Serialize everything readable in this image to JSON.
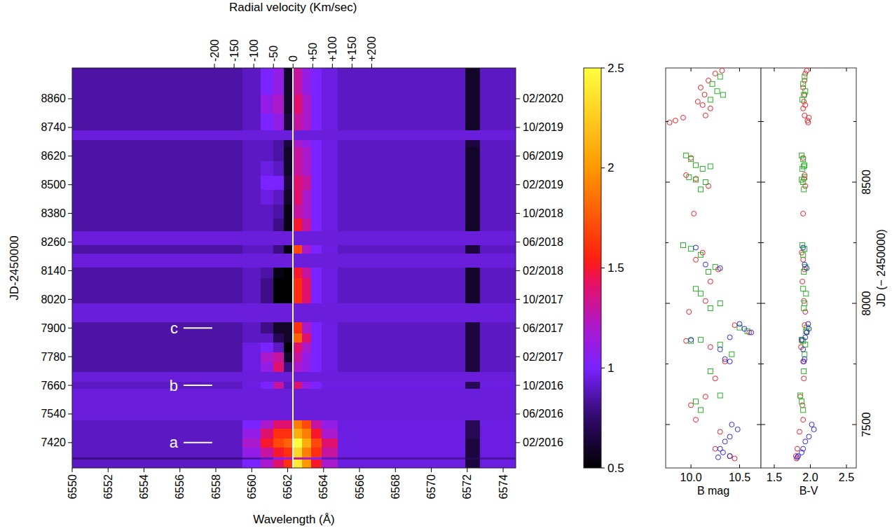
{
  "chart_data": [
    {
      "type": "heatmap",
      "xlabel": "Wavelength (Å)",
      "ylabel": "JD-2450000",
      "x2label": "Radial velocity (Km/sec)",
      "xlim": [
        6550,
        6574.7
      ],
      "xticks": [
        6550,
        6552,
        6554,
        6556,
        6558,
        6560,
        6562,
        6564,
        6566,
        6568,
        6570,
        6572,
        6574
      ],
      "x2lim": [
        -562,
        566.5
      ],
      "x2ticks": [
        -200,
        -150,
        -100,
        -50,
        0,
        {
          "value": 50,
          "label": "+50"
        },
        {
          "value": 100,
          "label": "+100"
        },
        {
          "value": 150,
          "label": "+150"
        },
        {
          "value": 200,
          "label": "+200"
        }
      ],
      "ylim": [
        7314,
        8989
      ],
      "yticks": [
        7420,
        7540,
        7660,
        7780,
        7900,
        8020,
        8140,
        8260,
        8380,
        8500,
        8620,
        8740,
        8860
      ],
      "y2lim": [
        7314,
        8989
      ],
      "y2ticks": [
        {
          "value": 7420,
          "label": "02/2016"
        },
        {
          "value": 7540,
          "label": "06/2016"
        },
        {
          "value": 7660,
          "label": "10/2016"
        },
        {
          "value": 7780,
          "label": "02/2017"
        },
        {
          "value": 7900,
          "label": "06/2017"
        },
        {
          "value": 8020,
          "label": "10/2017"
        },
        {
          "value": 8140,
          "label": "02/2018"
        },
        {
          "value": 8260,
          "label": "06/2018"
        },
        {
          "value": 8380,
          "label": "10/2018"
        },
        {
          "value": 8500,
          "label": "02/2019"
        },
        {
          "value": 8620,
          "label": "06/2019"
        },
        {
          "value": 8740,
          "label": "10/2019"
        },
        {
          "value": 8860,
          "label": "02/2020"
        }
      ],
      "x_edges": [
        6550,
        6559.5,
        6560.5,
        6561.2,
        6561.8,
        6562.3,
        6562.8,
        6563.3,
        6563.9,
        6564.8,
        6571.9,
        6572.7,
        6574.7
      ],
      "y_edges": [
        7314,
        7350,
        7361,
        7400,
        7440,
        7480,
        7514,
        7646,
        7675,
        7719,
        7760,
        7800,
        7840,
        7880,
        7924,
        8006,
        8060,
        8110,
        8153,
        8212,
        8247,
        8306,
        8360,
        8420,
        8480,
        8540,
        8600,
        8660,
        8687,
        8731,
        8800,
        8880,
        8989
      ],
      "cells": [
        [
          0.9,
          1.0,
          1.2,
          1.4,
          1.6,
          2.4,
          2.0,
          1.5,
          1.2,
          0.95,
          0.65,
          0.95
        ],
        [
          0.8,
          0.85,
          0.9,
          1.0,
          1.1,
          1.3,
          1.2,
          1.0,
          0.9,
          0.85,
          0.7,
          0.85
        ],
        [
          0.9,
          1.1,
          1.3,
          1.5,
          1.6,
          2.3,
          1.9,
          1.6,
          1.3,
          0.95,
          0.65,
          0.95
        ],
        [
          0.9,
          1.2,
          1.5,
          1.7,
          1.8,
          2.5,
          2.1,
          1.7,
          1.4,
          0.95,
          0.65,
          0.95
        ],
        [
          0.9,
          1.1,
          1.4,
          1.6,
          1.6,
          2.1,
          1.9,
          1.5,
          1.2,
          0.95,
          0.7,
          0.95
        ],
        [
          0.9,
          1.0,
          1.2,
          1.4,
          1.4,
          1.9,
          1.7,
          1.3,
          1.1,
          0.95,
          0.7,
          0.95
        ],
        null,
        [
          0.9,
          0.95,
          1.0,
          1.3,
          0.9,
          1.4,
          1.1,
          1.0,
          0.95,
          0.95,
          0.7,
          0.95
        ],
        null,
        [
          0.85,
          0.95,
          1.1,
          1.4,
          0.8,
          1.2,
          1.1,
          1.0,
          0.95,
          0.9,
          0.65,
          0.9
        ],
        [
          0.85,
          0.95,
          1.2,
          1.3,
          0.6,
          1.3,
          1.1,
          1.0,
          0.95,
          0.9,
          0.65,
          0.9
        ],
        [
          0.85,
          0.95,
          1.0,
          0.9,
          0.5,
          1.4,
          1.2,
          1.0,
          0.95,
          0.9,
          0.65,
          0.9
        ],
        [
          0.85,
          0.9,
          0.9,
          0.7,
          0.6,
          1.8,
          1.4,
          1.0,
          0.95,
          0.9,
          0.65,
          0.9
        ],
        [
          0.85,
          0.9,
          0.8,
          0.6,
          0.6,
          1.6,
          1.2,
          1.0,
          0.95,
          0.9,
          0.65,
          0.9
        ],
        null,
        [
          0.85,
          0.9,
          0.8,
          0.5,
          0.5,
          1.6,
          1.4,
          1.0,
          0.95,
          0.9,
          0.6,
          0.9
        ],
        [
          0.85,
          0.9,
          0.8,
          0.5,
          0.5,
          1.6,
          1.4,
          1.0,
          0.95,
          0.9,
          0.6,
          0.9
        ],
        [
          0.85,
          0.9,
          0.85,
          0.55,
          0.5,
          1.5,
          1.3,
          1.0,
          0.95,
          0.9,
          0.6,
          0.9
        ],
        null,
        [
          0.85,
          0.9,
          0.9,
          0.8,
          0.55,
          1.7,
          1.2,
          1.0,
          0.95,
          0.9,
          0.65,
          0.9
        ],
        null,
        [
          0.85,
          0.9,
          0.9,
          0.8,
          0.55,
          1.5,
          1.3,
          1.0,
          0.95,
          0.9,
          0.6,
          0.9
        ],
        [
          0.85,
          0.9,
          0.9,
          0.85,
          0.55,
          1.3,
          1.2,
          1.0,
          0.95,
          0.9,
          0.6,
          0.9
        ],
        [
          0.85,
          0.9,
          0.95,
          0.9,
          0.6,
          1.4,
          1.2,
          1.0,
          0.95,
          0.9,
          0.6,
          0.9
        ],
        [
          0.85,
          0.9,
          1.0,
          1.0,
          0.65,
          1.4,
          1.3,
          1.0,
          0.95,
          0.9,
          0.6,
          0.9
        ],
        [
          0.85,
          0.9,
          0.95,
          0.9,
          0.6,
          1.3,
          1.2,
          1.0,
          0.95,
          0.9,
          0.6,
          0.9
        ],
        [
          0.85,
          0.9,
          0.9,
          0.85,
          0.6,
          1.3,
          1.2,
          1.0,
          0.95,
          0.9,
          0.6,
          0.9
        ],
        [
          0.85,
          0.9,
          0.9,
          0.85,
          0.65,
          1.2,
          1.1,
          1.0,
          0.95,
          0.9,
          0.65,
          0.9
        ],
        null,
        [
          0.85,
          0.9,
          1.0,
          1.1,
          0.65,
          1.3,
          1.2,
          1.0,
          0.95,
          0.9,
          0.6,
          0.9
        ],
        [
          0.85,
          0.9,
          1.1,
          1.2,
          0.6,
          1.4,
          1.2,
          1.0,
          0.95,
          0.9,
          0.6,
          0.9
        ],
        [
          0.85,
          0.9,
          1.0,
          1.1,
          0.6,
          1.3,
          1.1,
          1.0,
          0.95,
          0.9,
          0.6,
          0.9
        ]
      ],
      "colorbar_range": [
        0.5,
        2.5
      ],
      "colorbar_ticks": [
        0.5,
        1,
        1.5,
        2,
        2.5
      ],
      "reference_line_x2": 0,
      "annotations": [
        {
          "text": "a",
          "y": 7420,
          "x": [
            6556.2,
            6557.8
          ]
        },
        {
          "text": "b",
          "y": 7660,
          "x": [
            6556.2,
            6557.8
          ]
        },
        {
          "text": "c",
          "y": 7900,
          "x": [
            6556.2,
            6557.8
          ]
        }
      ]
    },
    {
      "type": "scatter",
      "xlabel": "B mag",
      "xlim": [
        9.74,
        10.72
      ],
      "xticks": [
        {
          "value": 10,
          "label": "10.0"
        },
        10.5
      ],
      "ylim": [
        7321,
        8971
      ],
      "yticks": [
        7500,
        8000,
        8500
      ],
      "yticks_minor": [
        7750,
        8250,
        8750
      ],
      "tick_labels": "x",
      "series": [
        {
          "color": "#e8202a",
          "marker": "circle",
          "x": [
            10.32,
            10.25,
            10.18,
            10.1,
            10.14,
            10.07,
            10.12,
            10.2,
            10.15,
            9.78,
            9.84,
            9.92,
            10.0,
            9.95,
            10.05,
            10.18,
            10.03,
            10.12,
            10.05,
            10.28,
            10.2,
            10.15,
            9.98,
            10.45,
            10.6,
            9.95,
            10.2,
            10.35,
            10.25,
            10.15,
            10.0,
            10.05,
            10.3,
            10.25,
            10.4,
            10.45
          ],
          "y": [
            8960,
            8948,
            8919,
            8890,
            8861,
            8832,
            8818,
            8804,
            8775,
            8746,
            8754,
            8766,
            8600,
            8529,
            8514,
            8484,
            8370,
            8209,
            8180,
            8140,
            8090,
            8010,
            7965,
            7910,
            7880,
            7845,
            7820,
            7760,
            7690,
            7615,
            7580,
            7520,
            7470,
            7400,
            7370,
            7360
          ]
        },
        {
          "color": "#2ab02a",
          "marker": "square",
          "x": [
            10.3,
            10.22,
            10.27,
            10.33,
            10.2,
            9.95,
            10.0,
            10.05,
            10.12,
            10.2,
            10.15,
            10.05,
            9.98,
            10.1,
            9.92,
            10.0,
            10.1,
            10.25,
            10.18,
            10.05,
            10.1,
            10.3,
            10.2,
            10.0,
            10.1,
            10.3,
            10.42,
            10.5,
            10.58,
            10.2,
            10.3,
            10.05,
            10.1
          ],
          "y": [
            8935,
            8905,
            8875,
            8860,
            8840,
            8610,
            8595,
            8570,
            8555,
            8565,
            8500,
            8510,
            8520,
            8470,
            8240,
            8225,
            8200,
            8150,
            8130,
            8060,
            8040,
            8000,
            7980,
            7845,
            7850,
            7830,
            7790,
            7900,
            7885,
            7720,
            7620,
            7595,
            7560
          ]
        },
        {
          "color": "#2a2ad8",
          "marker": "circle",
          "x": [
            10.05,
            10.15,
            10.3,
            10.5,
            10.55,
            10.62,
            10.4,
            10.0,
            10.3,
            10.35,
            10.4,
            10.42,
            10.48,
            10.4,
            10.35,
            10.3,
            10.33,
            10.4,
            10.28
          ],
          "y": [
            8230,
            8160,
            8145,
            7915,
            7895,
            7880,
            7860,
            7850,
            7810,
            7770,
            7760,
            7500,
            7480,
            7450,
            7430,
            7400,
            7385,
            7370,
            7365
          ]
        }
      ]
    },
    {
      "type": "scatter",
      "xlabel": "B-V",
      "ylabel": "JD (− 2450000)",
      "xlim": [
        1.316,
        2.636
      ],
      "xticks": [
        1.5,
        {
          "value": 2,
          "label": "2.0"
        },
        2.5
      ],
      "ylim": [
        7321,
        8971
      ],
      "yticks": [
        7500,
        8000,
        8500
      ],
      "yticks_minor": [
        7750,
        8250,
        8750
      ],
      "series": [
        {
          "color": "#e8202a",
          "marker": "circle",
          "x": [
            1.95,
            1.93,
            1.92,
            1.9,
            1.92,
            1.91,
            1.93,
            1.9,
            1.92,
            1.97,
            1.96,
            1.98,
            1.9,
            1.92,
            1.91,
            1.93,
            1.9,
            1.88,
            1.9,
            1.92,
            1.89,
            1.91,
            1.93,
            1.92,
            1.95,
            1.88,
            1.87,
            1.9,
            1.91,
            1.86,
            1.89,
            1.9,
            1.85,
            1.82,
            1.8,
            1.81
          ],
          "y": [
            8960,
            8948,
            8919,
            8890,
            8861,
            8832,
            8818,
            8804,
            8775,
            8746,
            8754,
            8766,
            8600,
            8529,
            8514,
            8484,
            8370,
            8209,
            8180,
            8140,
            8090,
            8010,
            7965,
            7910,
            7880,
            7845,
            7820,
            7760,
            7690,
            7615,
            7580,
            7520,
            7470,
            7400,
            7370,
            7360
          ]
        },
        {
          "color": "#2ab02a",
          "marker": "square",
          "x": [
            1.92,
            1.9,
            1.93,
            1.91,
            1.89,
            1.88,
            1.9,
            1.92,
            1.89,
            1.91,
            1.9,
            1.88,
            1.92,
            1.91,
            1.89,
            1.92,
            1.9,
            1.93,
            1.91,
            1.9,
            1.94,
            1.92,
            1.91,
            1.9,
            1.88,
            1.93,
            1.92,
            1.95,
            1.94,
            1.91,
            1.86,
            1.88,
            1.9
          ],
          "y": [
            8935,
            8905,
            8875,
            8860,
            8840,
            8610,
            8595,
            8570,
            8555,
            8565,
            8500,
            8510,
            8520,
            8470,
            8240,
            8225,
            8200,
            8150,
            8130,
            8060,
            8040,
            8000,
            7980,
            7845,
            7850,
            7830,
            7790,
            7900,
            7885,
            7720,
            7620,
            7595,
            7560
          ]
        },
        {
          "color": "#2a2ad8",
          "marker": "circle",
          "x": [
            1.9,
            1.92,
            1.95,
            1.97,
            1.98,
            1.95,
            1.93,
            1.88,
            1.9,
            1.92,
            1.91,
            2.02,
            2.05,
            1.98,
            1.93,
            1.9,
            1.88,
            1.83,
            1.82
          ],
          "y": [
            8230,
            8160,
            8145,
            7915,
            7895,
            7880,
            7860,
            7850,
            7810,
            7770,
            7760,
            7500,
            7480,
            7450,
            7430,
            7400,
            7385,
            7370,
            7365
          ]
        }
      ]
    }
  ]
}
